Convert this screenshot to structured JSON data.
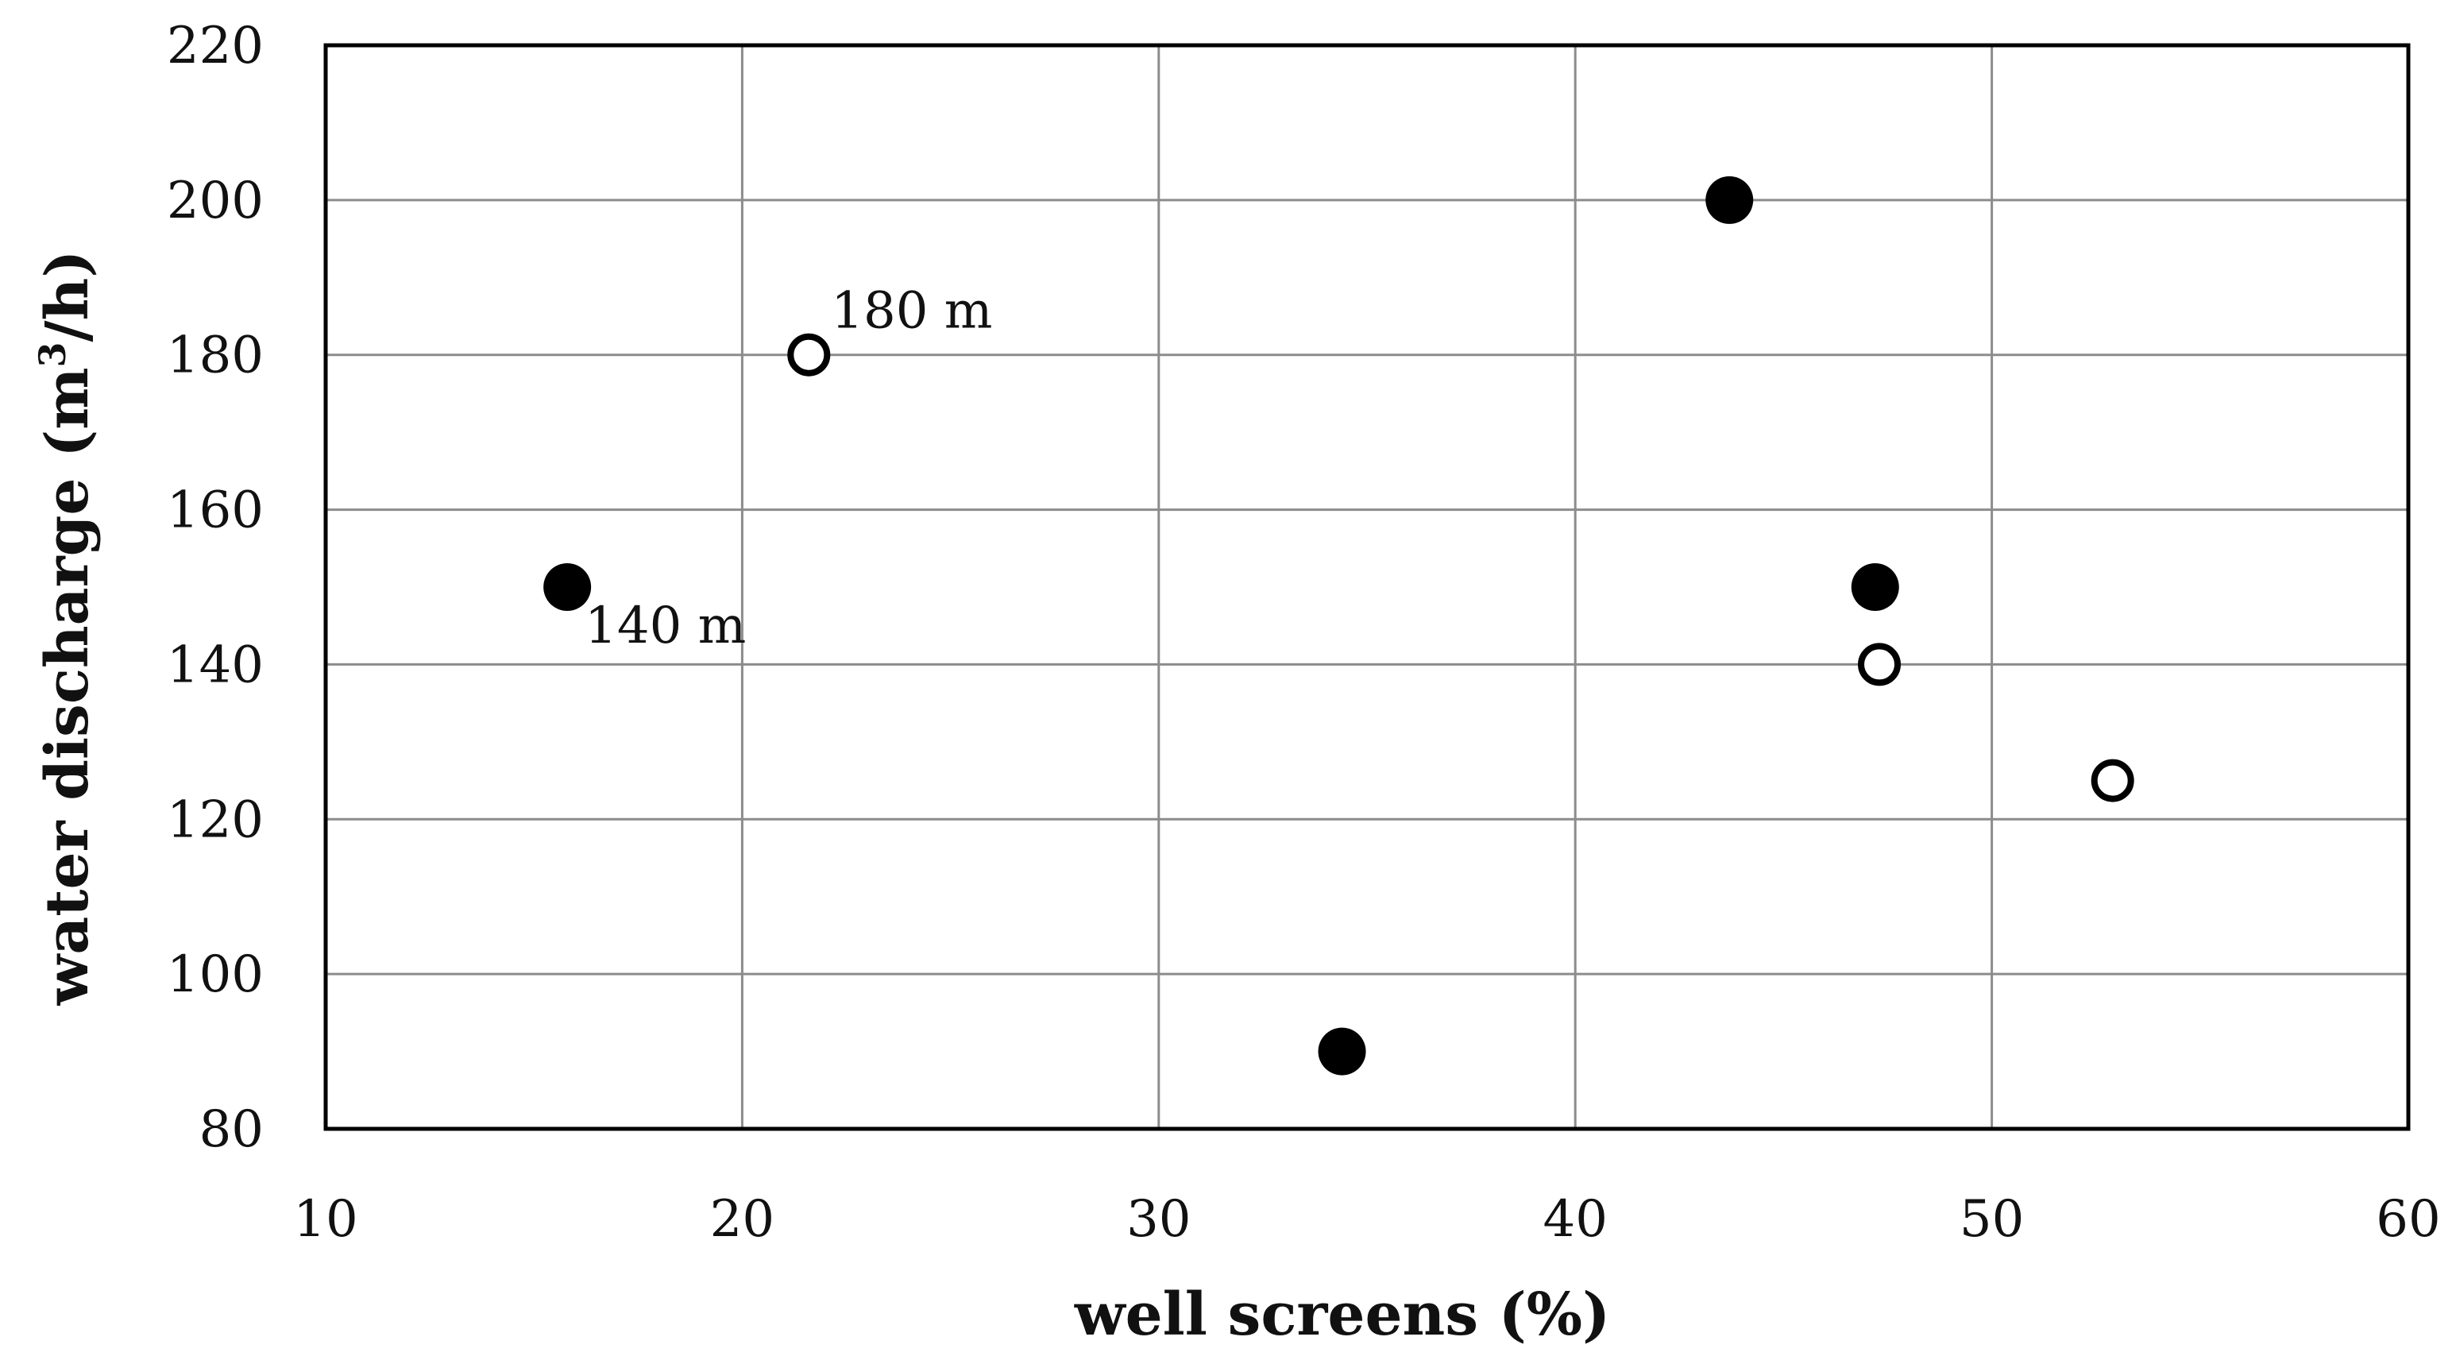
{
  "chart_data": {
    "type": "scatter",
    "title": "",
    "xlabel": "well screens (%)",
    "ylabel": {
      "prefix": "water  discharge  (m",
      "superscript": "3",
      "suffix": "/h)"
    },
    "xlim": [
      10,
      60
    ],
    "ylim": [
      80,
      220
    ],
    "x_ticks": [
      10,
      20,
      30,
      40,
      50,
      60
    ],
    "y_ticks": [
      80,
      100,
      120,
      140,
      160,
      180,
      200,
      220
    ],
    "grid": true,
    "legend": "none",
    "series": [
      {
        "marker": "filled-circle",
        "color": "#000000",
        "points": [
          {
            "x": 15.8,
            "y": 150
          },
          {
            "x": 34.4,
            "y": 90
          },
          {
            "x": 43.7,
            "y": 200
          },
          {
            "x": 47.2,
            "y": 150
          }
        ]
      },
      {
        "marker": "open-circle",
        "color": "#000000",
        "points": [
          {
            "x": 21.6,
            "y": 180
          },
          {
            "x": 47.3,
            "y": 140
          },
          {
            "x": 52.9,
            "y": 125
          }
        ]
      }
    ],
    "annotations": [
      {
        "text": "140 m",
        "x": 15.8,
        "y": 150,
        "position": "below-right"
      },
      {
        "text": "180 m",
        "x": 21.6,
        "y": 180,
        "position": "above-right"
      }
    ]
  }
}
